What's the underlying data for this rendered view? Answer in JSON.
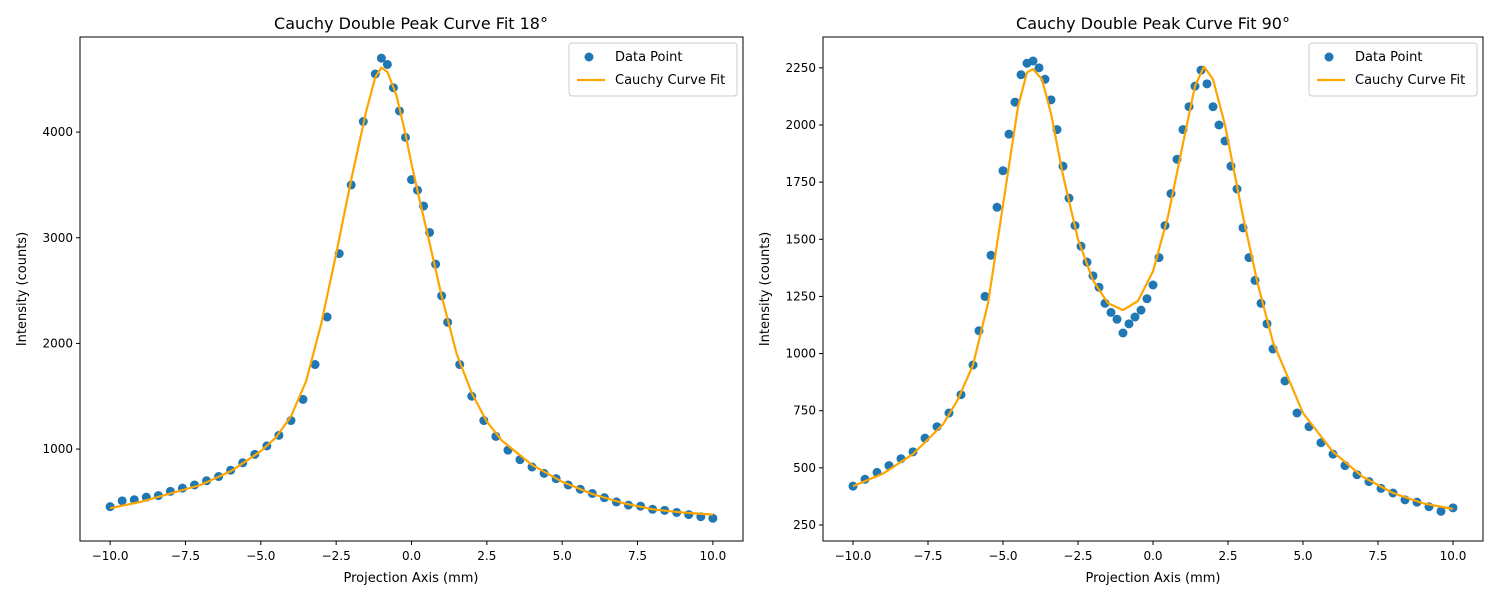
{
  "chart_data": [
    {
      "type": "scatter",
      "title": "Cauchy Double Peak Curve Fit 18°",
      "xlabel": "Projection Axis (mm)",
      "ylabel": "Intensity (counts)",
      "xlim": [
        -11,
        11
      ],
      "ylim": [
        130,
        4900
      ],
      "xticks": [
        -10,
        -7.5,
        -5,
        -2.5,
        0,
        2.5,
        5,
        7.5,
        10
      ],
      "xtick_labels": [
        "−10.0",
        "−7.5",
        "−5.0",
        "−2.5",
        "0.0",
        "2.5",
        "5.0",
        "7.5",
        "10.0"
      ],
      "yticks": [
        1000,
        2000,
        3000,
        4000
      ],
      "ytick_labels": [
        "1000",
        "2000",
        "3000",
        "4000"
      ],
      "legend_position": "upper-right",
      "grid": false,
      "series": [
        {
          "name": "Data Point",
          "kind": "points",
          "color": "#1f77b4",
          "points": [
            [
              -10,
              455
            ],
            [
              -9.6,
              510
            ],
            [
              -9.2,
              520
            ],
            [
              -8.8,
              545
            ],
            [
              -8.4,
              560
            ],
            [
              -8.0,
              600
            ],
            [
              -7.6,
              630
            ],
            [
              -7.2,
              660
            ],
            [
              -6.8,
              700
            ],
            [
              -6.4,
              740
            ],
            [
              -6.0,
              800
            ],
            [
              -5.6,
              870
            ],
            [
              -5.2,
              950
            ],
            [
              -4.8,
              1030
            ],
            [
              -4.4,
              1130
            ],
            [
              -4.0,
              1270
            ],
            [
              -3.6,
              1470
            ],
            [
              -3.2,
              1800
            ],
            [
              -2.8,
              2250
            ],
            [
              -2.4,
              2850
            ],
            [
              -2.0,
              3500
            ],
            [
              -1.6,
              4100
            ],
            [
              -1.2,
              4550
            ],
            [
              -1.0,
              4700
            ],
            [
              -0.8,
              4640
            ],
            [
              -0.6,
              4420
            ],
            [
              -0.4,
              4200
            ],
            [
              -0.2,
              3950
            ],
            [
              0.0,
              3550
            ],
            [
              0.2,
              3450
            ],
            [
              0.4,
              3300
            ],
            [
              0.6,
              3050
            ],
            [
              0.8,
              2750
            ],
            [
              1.0,
              2450
            ],
            [
              1.2,
              2200
            ],
            [
              1.6,
              1800
            ],
            [
              2.0,
              1500
            ],
            [
              2.4,
              1270
            ],
            [
              2.8,
              1120
            ],
            [
              3.2,
              990
            ],
            [
              3.6,
              900
            ],
            [
              4.0,
              830
            ],
            [
              4.4,
              770
            ],
            [
              4.8,
              720
            ],
            [
              5.2,
              660
            ],
            [
              5.6,
              620
            ],
            [
              6.0,
              580
            ],
            [
              6.4,
              540
            ],
            [
              6.8,
              500
            ],
            [
              7.2,
              470
            ],
            [
              7.6,
              460
            ],
            [
              8.0,
              430
            ],
            [
              8.4,
              420
            ],
            [
              8.8,
              400
            ],
            [
              9.2,
              380
            ],
            [
              9.6,
              360
            ],
            [
              10,
              345
            ]
          ]
        },
        {
          "name": "Cauchy Curve Fit",
          "kind": "line",
          "color": "#ffa500",
          "points": [
            [
              -10,
              440
            ],
            [
              -9,
              500
            ],
            [
              -8,
              580
            ],
            [
              -7,
              660
            ],
            [
              -6,
              790
            ],
            [
              -5,
              980
            ],
            [
              -4.5,
              1110
            ],
            [
              -4,
              1310
            ],
            [
              -3.5,
              1640
            ],
            [
              -3,
              2180
            ],
            [
              -2.5,
              2850
            ],
            [
              -2,
              3550
            ],
            [
              -1.5,
              4200
            ],
            [
              -1.2,
              4520
            ],
            [
              -1.0,
              4610
            ],
            [
              -0.8,
              4570
            ],
            [
              -0.5,
              4350
            ],
            [
              -0.2,
              3980
            ],
            [
              0,
              3700
            ],
            [
              0.3,
              3320
            ],
            [
              0.6,
              2950
            ],
            [
              1,
              2450
            ],
            [
              1.5,
              1900
            ],
            [
              2,
              1530
            ],
            [
              2.5,
              1260
            ],
            [
              3,
              1080
            ],
            [
              4,
              850
            ],
            [
              5,
              690
            ],
            [
              6,
              575
            ],
            [
              7,
              490
            ],
            [
              8,
              430
            ],
            [
              9,
              400
            ],
            [
              10,
              380
            ]
          ]
        }
      ]
    },
    {
      "type": "scatter",
      "title": "Cauchy Double Peak Curve Fit 90°",
      "xlabel": "Projection Axis (mm)",
      "ylabel": "Intensity (counts)",
      "xlim": [
        -11,
        11
      ],
      "ylim": [
        180,
        2385
      ],
      "xticks": [
        -10,
        -7.5,
        -5,
        -2.5,
        0,
        2.5,
        5,
        7.5,
        10
      ],
      "xtick_labels": [
        "−10.0",
        "−7.5",
        "−5.0",
        "−2.5",
        "0.0",
        "2.5",
        "5.0",
        "7.5",
        "10.0"
      ],
      "yticks": [
        250,
        500,
        750,
        1000,
        1250,
        1500,
        1750,
        2000,
        2250
      ],
      "ytick_labels": [
        "250",
        "500",
        "750",
        "1000",
        "1250",
        "1500",
        "1750",
        "2000",
        "2250"
      ],
      "legend_position": "upper-right",
      "grid": false,
      "series": [
        {
          "name": "Data Point",
          "kind": "points",
          "color": "#1f77b4",
          "points": [
            [
              -10,
              420
            ],
            [
              -9.6,
              450
            ],
            [
              -9.2,
              480
            ],
            [
              -8.8,
              510
            ],
            [
              -8.4,
              540
            ],
            [
              -8.0,
              570
            ],
            [
              -7.6,
              630
            ],
            [
              -7.2,
              680
            ],
            [
              -6.8,
              740
            ],
            [
              -6.4,
              820
            ],
            [
              -6.0,
              950
            ],
            [
              -5.8,
              1100
            ],
            [
              -5.6,
              1250
            ],
            [
              -5.4,
              1430
            ],
            [
              -5.2,
              1640
            ],
            [
              -5.0,
              1800
            ],
            [
              -4.8,
              1960
            ],
            [
              -4.6,
              2100
            ],
            [
              -4.4,
              2220
            ],
            [
              -4.2,
              2270
            ],
            [
              -4.0,
              2280
            ],
            [
              -3.8,
              2250
            ],
            [
              -3.6,
              2200
            ],
            [
              -3.4,
              2110
            ],
            [
              -3.2,
              1980
            ],
            [
              -3.0,
              1820
            ],
            [
              -2.8,
              1680
            ],
            [
              -2.6,
              1560
            ],
            [
              -2.4,
              1470
            ],
            [
              -2.2,
              1400
            ],
            [
              -2.0,
              1340
            ],
            [
              -1.8,
              1290
            ],
            [
              -1.6,
              1220
            ],
            [
              -1.4,
              1180
            ],
            [
              -1.2,
              1150
            ],
            [
              -1.0,
              1090
            ],
            [
              -0.8,
              1130
            ],
            [
              -0.6,
              1160
            ],
            [
              -0.4,
              1190
            ],
            [
              -0.2,
              1240
            ],
            [
              0.0,
              1300
            ],
            [
              0.2,
              1420
            ],
            [
              0.4,
              1560
            ],
            [
              0.6,
              1700
            ],
            [
              0.8,
              1850
            ],
            [
              1.0,
              1980
            ],
            [
              1.2,
              2080
            ],
            [
              1.4,
              2170
            ],
            [
              1.6,
              2240
            ],
            [
              1.8,
              2180
            ],
            [
              2.0,
              2080
            ],
            [
              2.2,
              2000
            ],
            [
              2.4,
              1930
            ],
            [
              2.6,
              1820
            ],
            [
              2.8,
              1720
            ],
            [
              3.0,
              1550
            ],
            [
              3.2,
              1420
            ],
            [
              3.4,
              1320
            ],
            [
              3.6,
              1220
            ],
            [
              3.8,
              1130
            ],
            [
              4.0,
              1020
            ],
            [
              4.4,
              880
            ],
            [
              4.8,
              740
            ],
            [
              5.2,
              680
            ],
            [
              5.6,
              610
            ],
            [
              6.0,
              560
            ],
            [
              6.4,
              510
            ],
            [
              6.8,
              470
            ],
            [
              7.2,
              440
            ],
            [
              7.6,
              410
            ],
            [
              8.0,
              390
            ],
            [
              8.4,
              360
            ],
            [
              8.8,
              350
            ],
            [
              9.2,
              330
            ],
            [
              9.6,
              310
            ],
            [
              10,
              325
            ]
          ]
        },
        {
          "name": "Cauchy Curve Fit",
          "kind": "line",
          "color": "#ffa500",
          "points": [
            [
              -10,
              420
            ],
            [
              -9,
              475
            ],
            [
              -8,
              560
            ],
            [
              -7,
              690
            ],
            [
              -6.5,
              800
            ],
            [
              -6,
              950
            ],
            [
              -5.5,
              1220
            ],
            [
              -5,
              1650
            ],
            [
              -4.5,
              2080
            ],
            [
              -4.2,
              2230
            ],
            [
              -4.0,
              2245
            ],
            [
              -3.7,
              2200
            ],
            [
              -3.4,
              2050
            ],
            [
              -3,
              1780
            ],
            [
              -2.5,
              1500
            ],
            [
              -2,
              1320
            ],
            [
              -1.5,
              1220
            ],
            [
              -1,
              1190
            ],
            [
              -0.5,
              1230
            ],
            [
              0,
              1360
            ],
            [
              0.5,
              1600
            ],
            [
              1,
              1920
            ],
            [
              1.4,
              2170
            ],
            [
              1.7,
              2255
            ],
            [
              2,
              2200
            ],
            [
              2.4,
              2000
            ],
            [
              3,
              1600
            ],
            [
              3.5,
              1300
            ],
            [
              4,
              1050
            ],
            [
              5,
              740
            ],
            [
              6,
              570
            ],
            [
              7,
              460
            ],
            [
              8,
              390
            ],
            [
              9,
              345
            ],
            [
              10,
              320
            ]
          ]
        }
      ]
    }
  ]
}
